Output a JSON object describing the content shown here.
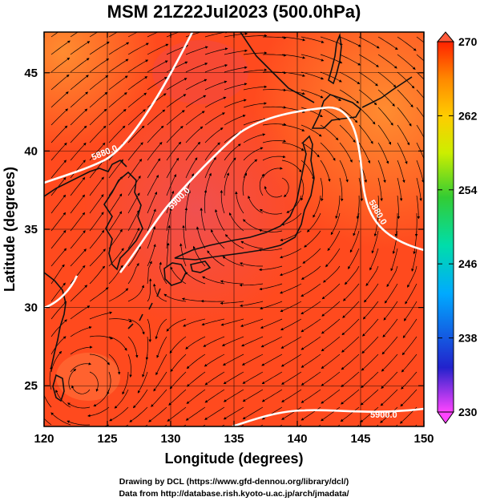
{
  "title": "MSM 21Z22Jul2023 (500.0hPa)",
  "x_axis": {
    "label": "Longitude (degrees)",
    "ticks": [
      "120",
      "125",
      "130",
      "135",
      "140",
      "145",
      "150"
    ],
    "range": [
      120,
      150
    ]
  },
  "y_axis": {
    "label": "Latitude  (degrees)",
    "ticks": [
      "25",
      "30",
      "35",
      "40",
      "45"
    ],
    "range": [
      22.4,
      47.6
    ]
  },
  "colorbar": {
    "ticks": [
      "270",
      "262",
      "254",
      "246",
      "238",
      "230"
    ],
    "range": [
      230,
      270
    ],
    "colors": [
      "#ff44ff",
      "#2222cc",
      "#00aaff",
      "#00ddaa",
      "#33cc33",
      "#ccee00",
      "#ffcc00",
      "#ff8800",
      "#ff2200"
    ]
  },
  "contours": [
    {
      "label": "5880.0",
      "value": 5880.0
    },
    {
      "label": "5900.0",
      "value": 5900.0
    },
    {
      "label": "5880.0",
      "value": 5880.0
    },
    {
      "label": "5900.0",
      "value": 5900.0
    }
  ],
  "credits": {
    "line1": "Drawing by DCL (https://www.gfd-dennou.org/library/dcl/)",
    "line2": "Data from http://database.rish.kyoto-u.ac.jp/arch/jmadata/"
  },
  "colors": {
    "field_base": "#ff4a1e",
    "field_warm": "#ff7a2a",
    "contour": "#ffffff",
    "coast": "#111111"
  }
}
